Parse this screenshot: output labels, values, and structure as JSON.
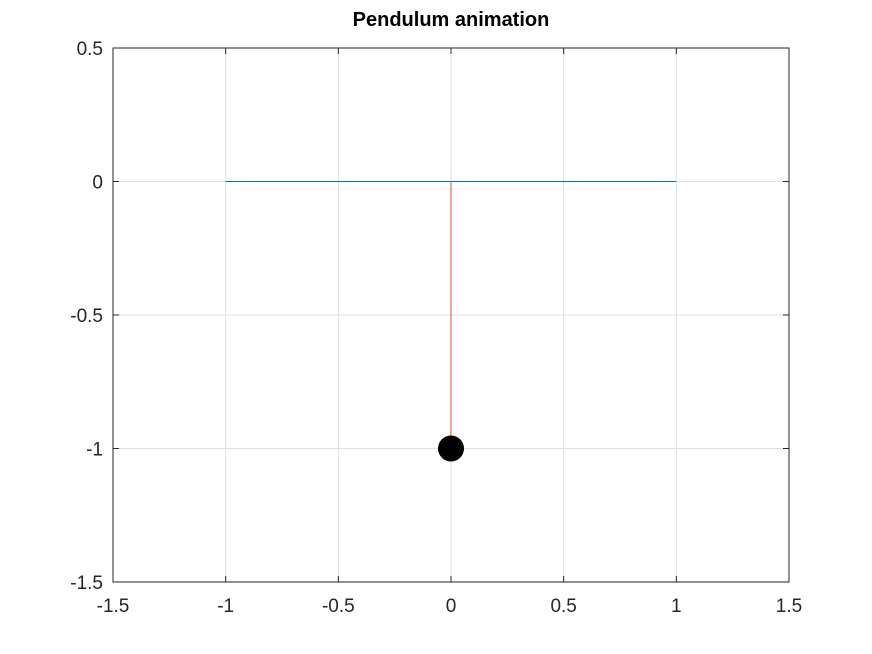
{
  "chart_data": {
    "type": "line",
    "title": "Pendulum animation",
    "xlabel": "",
    "ylabel": "",
    "xlim": [
      -1.5,
      1.5
    ],
    "ylim": [
      -1.5,
      0.5
    ],
    "xticks": [
      -1.5,
      -1,
      -0.5,
      0,
      0.5,
      1,
      1.5
    ],
    "xtick_labels": [
      "-1.5",
      "-1",
      "-0.5",
      "0",
      "0.5",
      "1",
      "1.5"
    ],
    "yticks": [
      -1.5,
      -1,
      -0.5,
      0,
      0.5
    ],
    "ytick_labels": [
      "-1.5",
      "-1",
      "-0.5",
      "0",
      "0.5"
    ],
    "grid": true,
    "legend": "none",
    "series": [
      {
        "role": "ceiling",
        "x": [
          -1,
          1
        ],
        "y": [
          0,
          0
        ],
        "color": "#0072bd"
      },
      {
        "role": "rod",
        "x": [
          0,
          0
        ],
        "y": [
          0,
          -1
        ],
        "color": "#d95319"
      },
      {
        "role": "bob",
        "x": [
          0
        ],
        "y": [
          -1
        ],
        "color": "#000000",
        "marker": "filled-circle"
      }
    ],
    "colors": {
      "axes": "#262626",
      "grid": "#dfdfdf"
    }
  }
}
